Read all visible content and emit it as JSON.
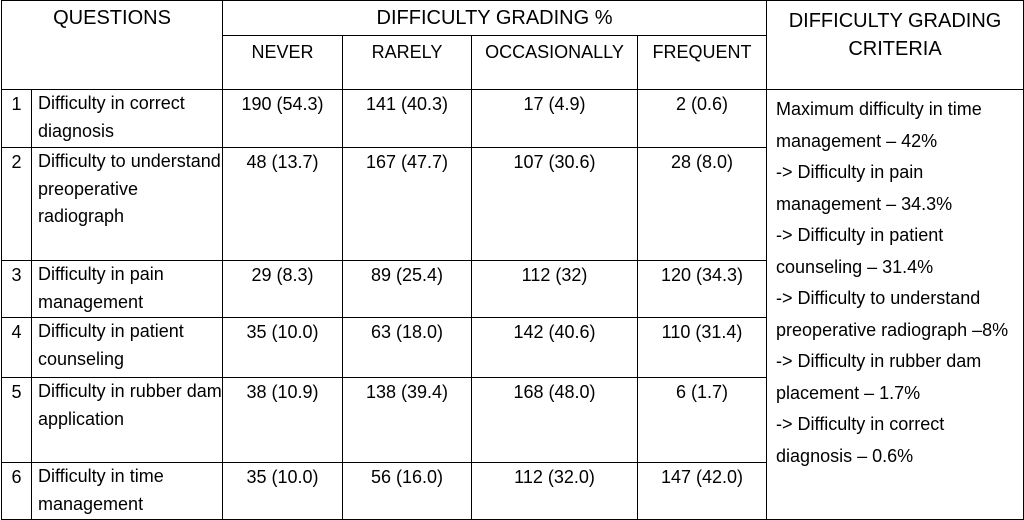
{
  "header": {
    "questions": "QUESTIONS",
    "grading": "DIFFICULTY GRADING %",
    "criteria_line1": "DIFFICULTY GRADING",
    "criteria_line2": "CRITERIA",
    "columns": [
      "NEVER",
      "RARELY",
      "OCCASIONALLY",
      "FREQUENT"
    ]
  },
  "rows": [
    {
      "num": "1",
      "question": "Difficulty in correct diagnosis",
      "never": "190 (54.3)",
      "rarely": "141 (40.3)",
      "occasionally": "17 (4.9)",
      "frequent": "2 (0.6)"
    },
    {
      "num": "2",
      "question": "Difficulty to understand preoperative radiograph",
      "never": "48 (13.7)",
      "rarely": "167 (47.7)",
      "occasionally": "107 (30.6)",
      "frequent": "28 (8.0)"
    },
    {
      "num": "3",
      "question": "Difficulty in pain management",
      "never": "29 (8.3)",
      "rarely": "89 (25.4)",
      "occasionally": "112 (32)",
      "frequent": "120 (34.3)"
    },
    {
      "num": "4",
      "question": "Difficulty in patient counseling",
      "never": "35 (10.0)",
      "rarely": "63 (18.0)",
      "occasionally": "142 (40.6)",
      "frequent": "110 (31.4)"
    },
    {
      "num": "5",
      "question": "Difficulty in rubber dam application",
      "never": "38 (10.9)",
      "rarely": "138 (39.4)",
      "occasionally": "168 (48.0)",
      "frequent": "6 (1.7)"
    },
    {
      "num": "6",
      "question": "Difficulty in time management",
      "never": "35 (10.0)",
      "rarely": "56 (16.0)",
      "occasionally": "112 (32.0)",
      "frequent": "147 (42.0)"
    }
  ],
  "criteria": [
    "Maximum difficulty in time management – 42%",
    "-> Difficulty in pain management – 34.3%",
    "-> Difficulty in patient counseling – 31.4%",
    "-> Difficulty to understand preoperative radiograph –8%",
    "-> Difficulty in rubber dam placement – 1.7%",
    "-> Difficulty in correct diagnosis – 0.6%"
  ]
}
